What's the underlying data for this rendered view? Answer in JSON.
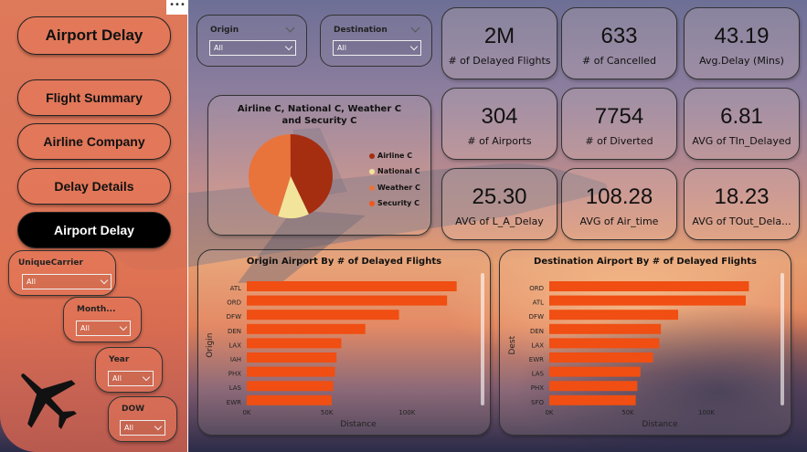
{
  "sidebar": {
    "title_button": "Airport Delay",
    "nav": [
      {
        "label": "Flight Summary"
      },
      {
        "label": "Airline Company"
      },
      {
        "label": "Delay Details"
      },
      {
        "label": "Airport Delay"
      }
    ],
    "more_label": "•••",
    "filters": {
      "unique_carrier": {
        "label": "UniqueCarrier",
        "value": "All"
      },
      "month": {
        "label": "Month...",
        "value": "All"
      },
      "year": {
        "label": "Year",
        "value": "All"
      },
      "dow": {
        "label": "DOW",
        "value": "All"
      }
    }
  },
  "top_filters": {
    "origin": {
      "label": "Origin",
      "value": "All"
    },
    "destination": {
      "label": "Destination",
      "value": "All"
    }
  },
  "kpis": [
    {
      "value": "2M",
      "caption": "# of Delayed Flights"
    },
    {
      "value": "633",
      "caption": "# of Cancelled"
    },
    {
      "value": "43.19",
      "caption": "Avg.Delay (Mins)"
    },
    {
      "value": "304",
      "caption": "# of Airports"
    },
    {
      "value": "7754",
      "caption": "# of Diverted"
    },
    {
      "value": "6.81",
      "caption": "AVG of TIn_Delayed"
    },
    {
      "value": "25.30",
      "caption": "AVG of L_A_Delay"
    },
    {
      "value": "108.28",
      "caption": "AVG of Air_time"
    },
    {
      "value": "18.23",
      "caption": "AVG of TOut_Dela..."
    }
  ],
  "colors": {
    "bar": "#f04e12",
    "pie_airline": "#a52e10",
    "pie_national": "#f2e49a",
    "pie_weather": "#e8743c",
    "pie_security": "#f0561e"
  },
  "chart_data": [
    {
      "type": "pie",
      "title": "Airline C, National C, Weather C and Security C",
      "labels": [
        "Airline C",
        "National C",
        "Weather C",
        "Security C"
      ],
      "values": [
        43,
        12,
        45,
        0.3
      ],
      "legend_position": "right"
    },
    {
      "type": "bar",
      "orientation": "horizontal",
      "title": "Origin Airport By # of Delayed Flights",
      "categories": [
        "ATL",
        "ORD",
        "DFW",
        "DEN",
        "LAX",
        "IAH",
        "PHX",
        "LAS",
        "EWR"
      ],
      "values": [
        131000,
        125000,
        95000,
        74000,
        59000,
        56000,
        55000,
        54000,
        53000
      ],
      "xlabel": "Distance",
      "ylabel": "Origin",
      "xlim": [
        0,
        150000
      ],
      "xticks": [
        "0K",
        "50K",
        "100K"
      ]
    },
    {
      "type": "bar",
      "orientation": "horizontal",
      "title": "Destination Airport By # of Delayed Flights",
      "categories": [
        "ORD",
        "ATL",
        "DFW",
        "DEN",
        "LAX",
        "EWR",
        "LAS",
        "PHX",
        "SFO"
      ],
      "values": [
        127000,
        125000,
        82000,
        71000,
        70000,
        66000,
        58000,
        56000,
        55000
      ],
      "xlabel": "Distance",
      "ylabel": "Dest",
      "xlim": [
        0,
        150000
      ],
      "xticks": [
        "0K",
        "50K",
        "100K"
      ]
    }
  ]
}
